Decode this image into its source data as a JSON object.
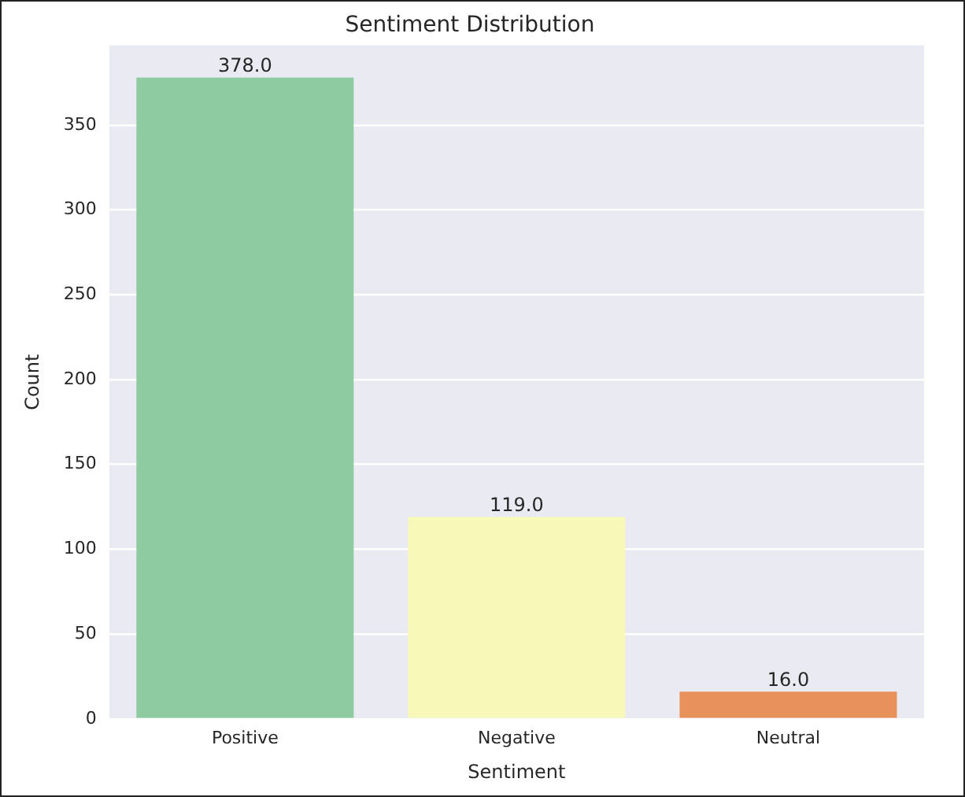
{
  "chart_data": {
    "type": "bar",
    "title": "Sentiment Distribution",
    "xlabel": "Sentiment",
    "ylabel": "Count",
    "categories": [
      "Positive",
      "Negative",
      "Neutral"
    ],
    "values": [
      378,
      119,
      16
    ],
    "colors": [
      "#8ecba0",
      "#f8f8b9",
      "#e9915c"
    ],
    "value_labels": [
      "378.0",
      "119.0",
      "16.0"
    ],
    "ylim": [
      0,
      397
    ],
    "yticks": [
      0,
      50,
      100,
      150,
      200,
      250,
      300,
      350
    ],
    "grid": "y",
    "legend": false
  }
}
